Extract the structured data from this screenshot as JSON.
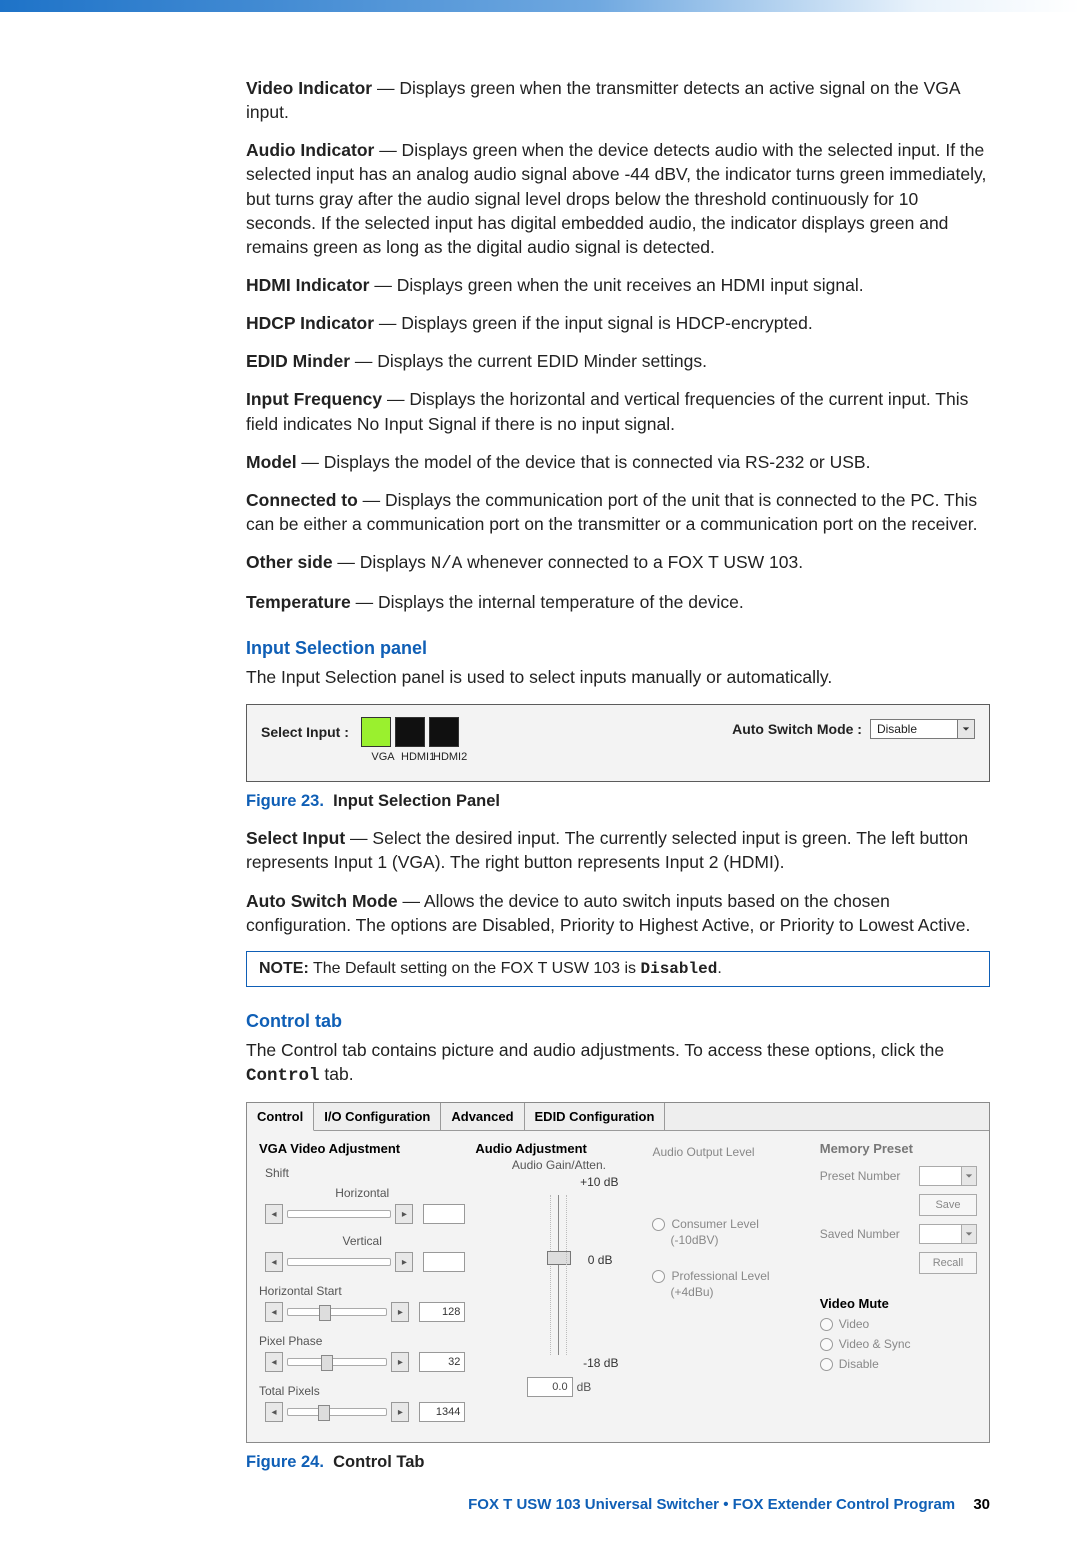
{
  "defs": [
    {
      "term": "Video Indicator",
      "text": " — Displays green when the transmitter detects an active signal on the VGA input."
    },
    {
      "term": "Audio Indicator",
      "text": " — Displays green when the device detects audio with the selected input. If the selected input has an analog audio signal above -44 dBV, the indicator turns green immediately, but turns gray after the audio signal level drops below the threshold continuously for 10 seconds. If the selected input has digital embedded audio, the indicator displays green and remains green as long as the digital audio signal is detected."
    },
    {
      "term": "HDMI Indicator",
      "text": " — Displays green when the unit receives an HDMI input signal."
    },
    {
      "term": "HDCP Indicator",
      "text": " — Displays green if the input signal is HDCP-encrypted."
    },
    {
      "term": "EDID Minder",
      "text": " — Displays the current EDID Minder settings."
    },
    {
      "term": "Input Frequency",
      "text": " — Displays the horizontal and vertical frequencies of the current input. This field indicates No Input Signal if there is no input signal."
    },
    {
      "term": "Model",
      "text": " — Displays the model of the device that is connected via RS-232 or USB."
    },
    {
      "term": "Connected to",
      "text": " — Displays the communication port of the unit that is connected to the PC. This can be either a communication port on the transmitter or a communication port on the receiver."
    }
  ],
  "otherSide": {
    "term": "Other side",
    "pre": " — Displays ",
    "mono": "N/A",
    "post": " whenever connected to a FOX T USW 103."
  },
  "temperature": {
    "term": "Temperature",
    "text": " — Displays the internal temperature of the device."
  },
  "section1": {
    "heading": "Input Selection panel",
    "intro": "The Input Selection panel is used to select inputs manually or automatically.",
    "selectLabel": "Select Input :",
    "inputs": [
      "VGA",
      "HDMI1",
      "HDMI2"
    ],
    "autoLabel": "Auto Switch Mode :",
    "autoValue": "Disable",
    "figureNum": "Figure 23.",
    "figureTitle": "Input Selection Panel"
  },
  "afterFig23": [
    {
      "term": "Select Input",
      "text": " — Select the desired input. The currently selected input is green. The left button represents Input 1 (VGA). The right button represents Input 2 (HDMI)."
    },
    {
      "term": "Auto Switch Mode",
      "text": " — Allows the device to auto switch inputs based on the chosen configuration. The options are Disabled, Priority to Highest Active, or Priority to Lowest Active."
    }
  ],
  "note": {
    "label": "NOTE:",
    "pre": " The Default setting on the FOX T USW 103 is ",
    "mono": "Disabled",
    "post": "."
  },
  "section2": {
    "heading": "Control tab",
    "introPre": "The Control tab contains picture and audio adjustments. To access these options, click the ",
    "introMono": "Control",
    "introPost": " tab.",
    "figureNum": "Figure 24.",
    "figureTitle": "Control Tab"
  },
  "panel24": {
    "tabs": [
      "Control",
      "I/O Configuration",
      "Advanced",
      "EDID Configuration"
    ],
    "col1": {
      "title": "VGA Video Adjustment",
      "shift": "Shift",
      "horizontal": "Horizontal",
      "vertical": "Vertical",
      "hstart": {
        "label": "Horizontal Start",
        "value": "128"
      },
      "pphase": {
        "label": "Pixel Phase",
        "value": "32"
      },
      "tpixels": {
        "label": "Total Pixels",
        "value": "1344"
      }
    },
    "col2": {
      "title": "Audio Adjustment",
      "gain": "Audio Gain/Atten.",
      "top": "+10 dB",
      "mid": "0 dB",
      "bot": "-18 dB",
      "entry": "0.0",
      "unit": "dB"
    },
    "col3": {
      "title": "Audio Output Level",
      "consumer": "Consumer Level",
      "consumerSub": "(-10dBV)",
      "pro": "Professional Level",
      "proSub": "(+4dBu)"
    },
    "col4": {
      "mem": {
        "title": "Memory Preset",
        "preset": "Preset Number",
        "save": "Save",
        "saved": "Saved Number",
        "recall": "Recall"
      },
      "vmute": {
        "title": "Video Mute",
        "o1": "Video",
        "o2": "Video & Sync",
        "o3": "Disable"
      }
    }
  },
  "footer": {
    "left": "FOX T USW 103 Universal Switcher • FOX Extender Control Program",
    "page": "30"
  }
}
